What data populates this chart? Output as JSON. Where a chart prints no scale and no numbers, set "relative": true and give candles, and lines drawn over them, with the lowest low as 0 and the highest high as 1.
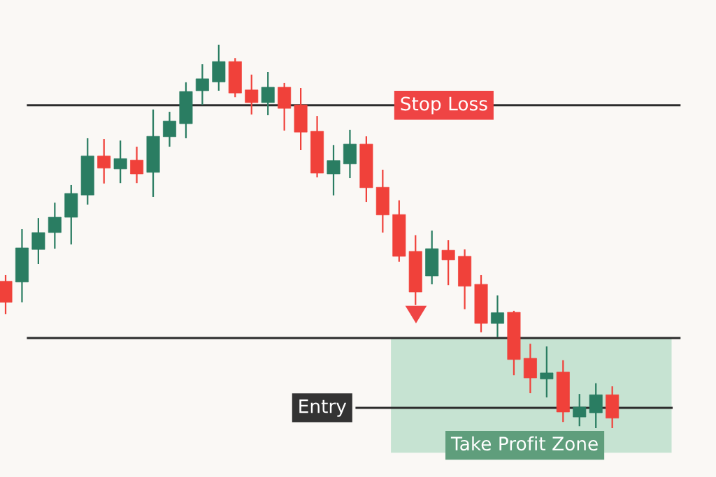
{
  "chart_data": {
    "type": "candlestick",
    "relative": true,
    "categories": [
      null,
      null,
      null,
      null,
      null,
      null,
      null,
      null,
      null,
      null,
      null,
      null,
      null,
      null,
      null,
      null,
      null,
      null,
      null,
      null,
      null,
      null,
      null,
      null,
      null,
      null,
      null,
      null,
      null,
      null,
      null,
      null,
      null,
      null,
      null,
      null,
      null,
      null
    ],
    "ohlc": [
      [
        0.383,
        0.399,
        0.297,
        0.328
      ],
      [
        0.381,
        0.519,
        0.328,
        0.47
      ],
      [
        0.466,
        0.548,
        0.428,
        0.51
      ],
      [
        0.51,
        0.588,
        0.468,
        0.55
      ],
      [
        0.55,
        0.634,
        0.479,
        0.612
      ],
      [
        0.608,
        0.756,
        0.583,
        0.71
      ],
      [
        0.71,
        0.754,
        0.638,
        0.678
      ],
      [
        0.676,
        0.75,
        0.639,
        0.703
      ],
      [
        0.699,
        0.734,
        0.639,
        0.663
      ],
      [
        0.667,
        0.831,
        0.603,
        0.761
      ],
      [
        0.76,
        0.825,
        0.734,
        0.801
      ],
      [
        0.794,
        0.902,
        0.756,
        0.878
      ],
      [
        0.88,
        0.949,
        0.843,
        0.911
      ],
      [
        0.903,
        1.0,
        0.88,
        0.956
      ],
      [
        0.956,
        0.965,
        0.863,
        0.874
      ],
      [
        0.882,
        0.922,
        0.818,
        0.849
      ],
      [
        0.849,
        0.929,
        0.816,
        0.889
      ],
      [
        0.889,
        0.9,
        0.776,
        0.834
      ],
      [
        0.843,
        0.887,
        0.725,
        0.772
      ],
      [
        0.774,
        0.814,
        0.654,
        0.665
      ],
      [
        0.663,
        0.738,
        0.607,
        0.698
      ],
      [
        0.689,
        0.778,
        0.652,
        0.741
      ],
      [
        0.741,
        0.761,
        0.59,
        0.627
      ],
      [
        0.628,
        0.674,
        0.51,
        0.556
      ],
      [
        0.557,
        0.594,
        0.434,
        0.448
      ],
      [
        0.461,
        0.503,
        0.321,
        0.355
      ],
      [
        0.397,
        0.515,
        0.375,
        0.468
      ],
      [
        0.464,
        0.49,
        0.373,
        0.439
      ],
      [
        0.448,
        0.466,
        0.31,
        0.37
      ],
      [
        0.375,
        0.399,
        0.25,
        0.273
      ],
      [
        0.273,
        0.346,
        0.237,
        0.301
      ],
      [
        0.302,
        0.306,
        0.138,
        0.179
      ],
      [
        0.182,
        0.22,
        0.091,
        0.131
      ],
      [
        0.128,
        0.213,
        0.08,
        0.144
      ],
      [
        0.146,
        0.177,
        0.016,
        0.042
      ],
      [
        0.029,
        0.089,
        0.005,
        0.055
      ],
      [
        0.04,
        0.117,
        0.0,
        0.087
      ],
      [
        0.087,
        0.109,
        0.0,
        0.026
      ]
    ],
    "colors": [
      "#f0413a",
      "#2a7d62",
      "#2a7d62",
      "#2a7d62",
      "#2a7d62",
      "#2a7d62",
      "#f0413a",
      "#2a7d62",
      "#f0413a",
      "#2a7d62",
      "#2a7d62",
      "#2a7d62",
      "#2a7d62",
      "#2a7d62",
      "#f0413a",
      "#f0413a",
      "#2a7d62",
      "#f0413a",
      "#f0413a",
      "#f0413a",
      "#2a7d62",
      "#2a7d62",
      "#f0413a",
      "#f0413a",
      "#f0413a",
      "#f0413a",
      "#2a7d62",
      "#f0413a",
      "#f0413a",
      "#f0413a",
      "#2a7d62",
      "#f0413a",
      "#f0413a",
      "#2a7d62",
      "#f0413a",
      "#2a7d62",
      "#2a7d62",
      "#f0413a"
    ],
    "ref_lines": [
      {
        "axis": "y",
        "value": 0.842,
        "label": "Stop Loss",
        "color": "#2b2b2b"
      },
      {
        "axis": "y",
        "value": 0.235,
        "label": null,
        "color": "#2b2b2b"
      },
      {
        "axis": "y",
        "value": 0.053,
        "label": "Entry",
        "color": "#2b2b2b"
      }
    ],
    "bands": [
      {
        "axis": "y",
        "from": 0.235,
        "to": -0.064,
        "label": "Take Profit Zone",
        "color": "#c6e3d2"
      }
    ]
  }
}
